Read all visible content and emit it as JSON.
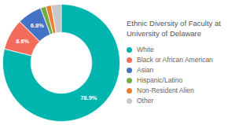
{
  "chart_data": {
    "type": "pie",
    "title": "Ethnic Diversity of Faculty at\nUniversity of Delaware",
    "categories": [
      "White",
      "Black or African American",
      "Asian",
      "Hispanic/Latino",
      "Non-Resident Alien",
      "Other"
    ],
    "values": [
      78.9,
      8.6,
      6.8,
      1.5,
      1.5,
      2.7
    ],
    "colors": [
      "#00b5ad",
      "#f26b5b",
      "#4472c4",
      "#70ad47",
      "#ed7d31",
      "#c8c8c8"
    ],
    "data_labels": true,
    "value_labels": [
      "78.9%",
      "8.6%",
      "6.8%",
      null,
      null,
      null
    ],
    "legend": "right"
  }
}
